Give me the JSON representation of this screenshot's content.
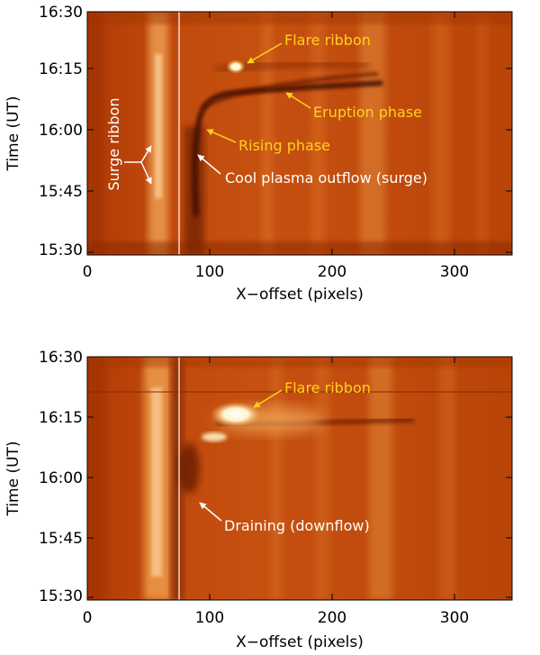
{
  "top": {
    "yticks": [
      "16:30",
      "16:15",
      "16:00",
      "15:45",
      "15:30"
    ],
    "xticks": [
      "0",
      "100",
      "200",
      "300"
    ],
    "ylabel": "Time (UT)",
    "xlabel": "X−offset (pixels)",
    "annotations": {
      "flare_ribbon": "Flare ribbon",
      "eruption_phase": "Eruption phase",
      "rising_phase": "Rising phase",
      "surge": "Cool plasma outflow (surge)",
      "surge_ribbon": "Surge ribbon"
    }
  },
  "bottom": {
    "yticks": [
      "16:30",
      "16:15",
      "16:00",
      "15:45",
      "15:30"
    ],
    "xticks": [
      "0",
      "100",
      "200",
      "300"
    ],
    "ylabel": "Time (UT)",
    "xlabel": "X−offset (pixels)",
    "annotations": {
      "flare_ribbon": "Flare ribbon",
      "draining": "Draining (downflow)"
    }
  },
  "colors": {
    "background_orange": "#c24a0c",
    "annotation_yellow": "#ffd21a",
    "annotation_white": "#ffffff"
  }
}
